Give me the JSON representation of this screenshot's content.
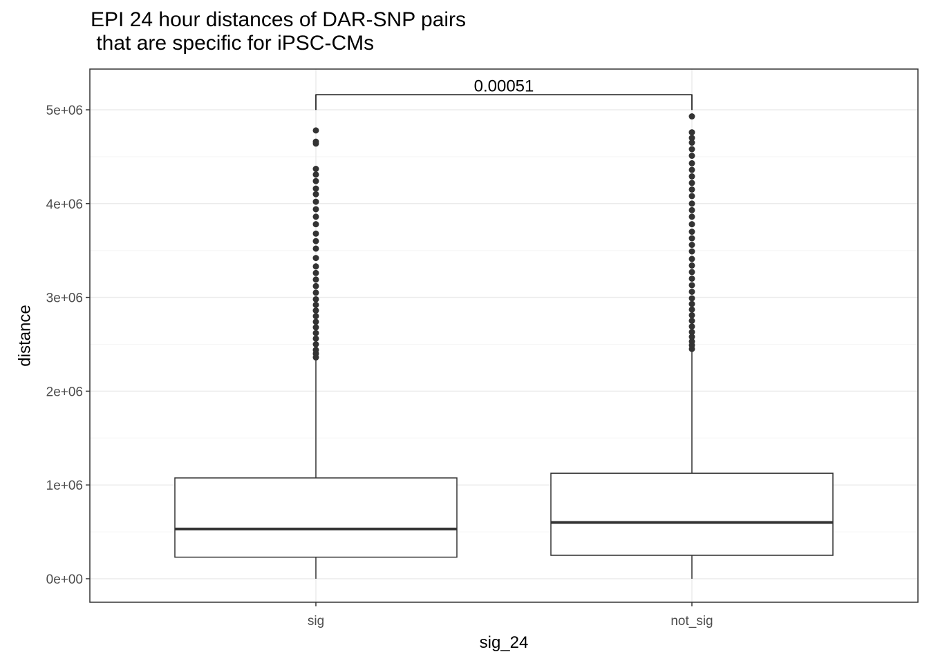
{
  "chart_data": {
    "type": "boxplot",
    "title_line1": "EPI 24 hour distances of DAR-SNP pairs",
    "title_line2": " that are specific for iPSC-CMs",
    "xlabel": "sig_24",
    "ylabel": "distance",
    "ylim": [
      -250000,
      5350000
    ],
    "y_ticks": [
      0,
      1000000,
      2000000,
      3000000,
      4000000,
      5000000
    ],
    "y_tick_labels": [
      "0e+00",
      "1e+06",
      "2e+06",
      "3e+06",
      "4e+06",
      "5e+06"
    ],
    "categories": [
      "sig",
      "not_sig"
    ],
    "boxes": [
      {
        "category": "sig",
        "min": 0,
        "q1": 230000,
        "median": 530000,
        "q3": 1075000,
        "whisker_high": 2340000,
        "outliers": [
          2360000,
          2400000,
          2440000,
          2500000,
          2560000,
          2620000,
          2680000,
          2740000,
          2800000,
          2860000,
          2920000,
          2980000,
          3050000,
          3120000,
          3190000,
          3260000,
          3330000,
          3420000,
          3520000,
          3600000,
          3680000,
          3780000,
          3860000,
          3940000,
          4020000,
          4100000,
          4160000,
          4240000,
          4310000,
          4370000,
          4640000,
          4660000,
          4780000
        ]
      },
      {
        "category": "not_sig",
        "min": 0,
        "q1": 250000,
        "median": 600000,
        "q3": 1125000,
        "whisker_high": 2430000,
        "outliers": [
          2450000,
          2490000,
          2530000,
          2580000,
          2630000,
          2690000,
          2750000,
          2810000,
          2870000,
          2930000,
          2990000,
          3060000,
          3130000,
          3200000,
          3270000,
          3340000,
          3410000,
          3490000,
          3560000,
          3630000,
          3700000,
          3780000,
          3860000,
          3930000,
          4000000,
          4080000,
          4150000,
          4220000,
          4290000,
          4360000,
          4430000,
          4510000,
          4580000,
          4650000,
          4700000,
          4760000,
          4930000
        ]
      }
    ],
    "comparison": {
      "label": "0.00051",
      "from": "sig",
      "to": "not_sig",
      "y": 5160000
    },
    "grid": true,
    "legend": "none"
  },
  "colors": {
    "box_line": "#333333",
    "grid_major": "#ebebeb",
    "grid_minor": "#f5f5f5",
    "panel_border": "#333333"
  }
}
